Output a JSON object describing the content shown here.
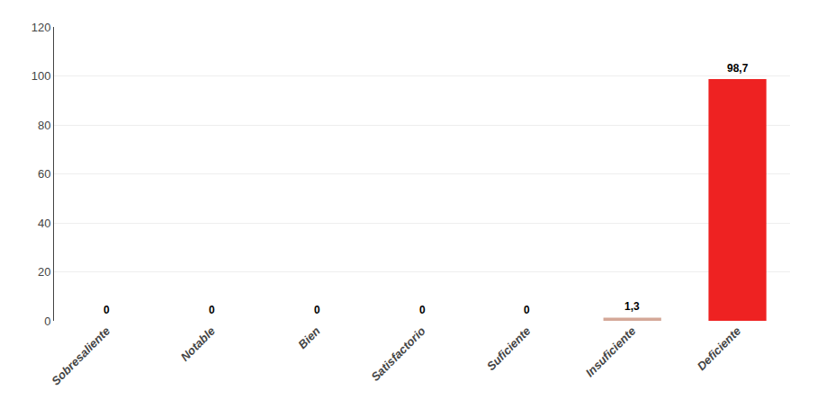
{
  "chart_data": {
    "type": "bar",
    "categories": [
      "Sobresaliente",
      "Notable",
      "Bien",
      "Satisfactorio",
      "Suficiente",
      "Insuficiente",
      "Deficiente"
    ],
    "values": [
      0,
      0,
      0,
      0,
      0,
      1.3,
      98.7
    ],
    "value_labels": [
      "0",
      "0",
      "0",
      "0",
      "0",
      "1,3",
      "98,7"
    ],
    "data_labels": true,
    "colors": [
      "#f0c8a0",
      "#f0c8a0",
      "#f0c8a0",
      "#f0c8a0",
      "#f0c8a0",
      "#d4a898",
      "#ee2222"
    ],
    "ylim": [
      0,
      120
    ],
    "yticks": [
      0,
      20,
      40,
      60,
      80,
      100,
      120
    ],
    "grid": true
  }
}
